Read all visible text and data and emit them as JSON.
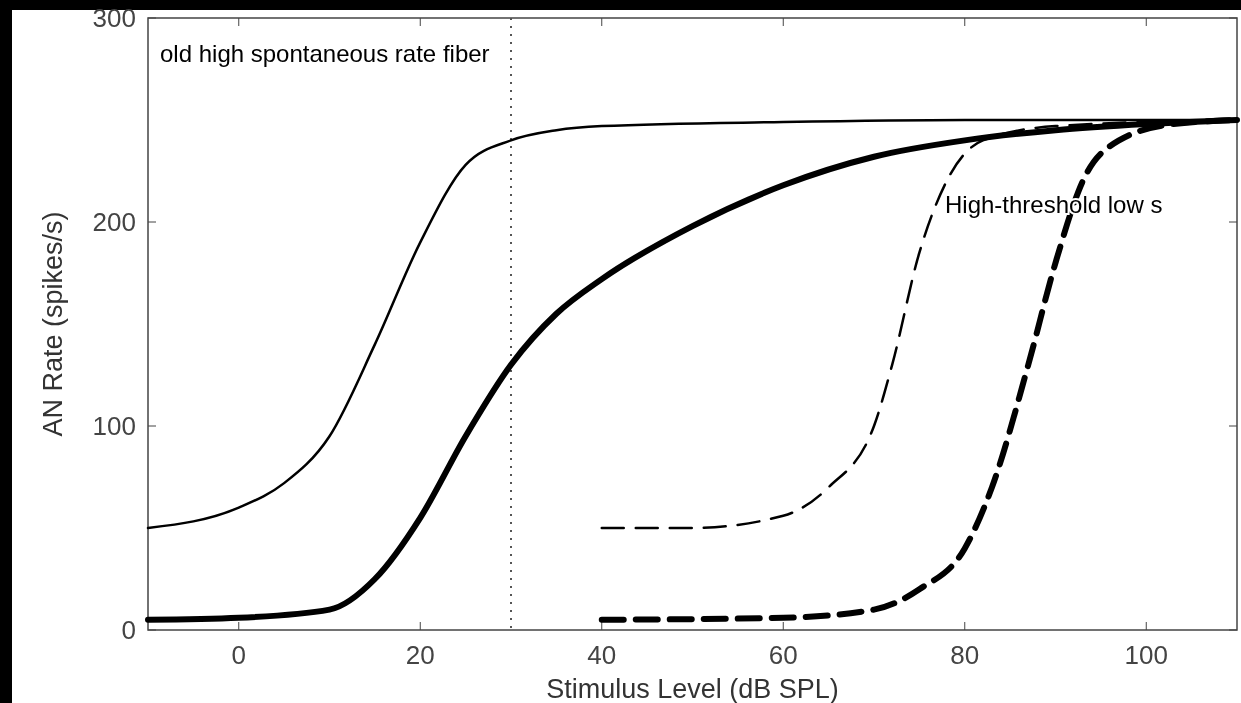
{
  "chart_data": {
    "type": "line",
    "xlabel": "Stimulus Level (dB SPL)",
    "ylabel": "AN Rate (spikes/s)",
    "xlim": [
      -10,
      110
    ],
    "xticks": [
      0,
      20,
      40,
      60,
      80,
      100
    ],
    "ylim": [
      0,
      300
    ],
    "yticks": [
      0,
      100,
      200,
      300
    ],
    "ref_lines": [
      {
        "axis": "x",
        "value": 30,
        "line_style": "dotted",
        "color": "#555555"
      }
    ],
    "annotations": [
      "old high spontaneous rate fiber",
      "High-threshold low s"
    ],
    "series": [
      {
        "color": "#000000",
        "line_style": "solid",
        "x": [
          -10,
          0,
          5,
          10,
          15,
          20,
          25,
          30,
          35,
          40,
          60,
          80,
          110
        ],
        "values": [
          50,
          60,
          72,
          95,
          140,
          190,
          228,
          240,
          245,
          247,
          249,
          250,
          250
        ]
      },
      {
        "color": "#000000",
        "line_style": "solid",
        "x": [
          -10,
          0,
          10,
          15,
          20,
          25,
          30,
          35,
          40,
          50,
          60,
          70,
          80,
          90,
          100,
          110
        ],
        "values": [
          5,
          6,
          10,
          25,
          55,
          95,
          130,
          155,
          172,
          198,
          218,
          232,
          240,
          245,
          248,
          250
        ]
      },
      {
        "color": "#000000",
        "line_style": "dashed",
        "x": [
          40,
          50,
          60,
          65,
          70,
          72,
          75,
          78,
          82,
          90,
          110
        ],
        "values": [
          50,
          50,
          56,
          70,
          100,
          130,
          185,
          220,
          240,
          247,
          250
        ]
      },
      {
        "color": "#000000",
        "line_style": "dashed",
        "x": [
          40,
          60,
          70,
          75,
          80,
          83,
          87,
          90,
          93,
          97,
          103,
          110
        ],
        "values": [
          5,
          6,
          10,
          20,
          40,
          70,
          130,
          180,
          220,
          240,
          248,
          250
        ]
      }
    ]
  }
}
